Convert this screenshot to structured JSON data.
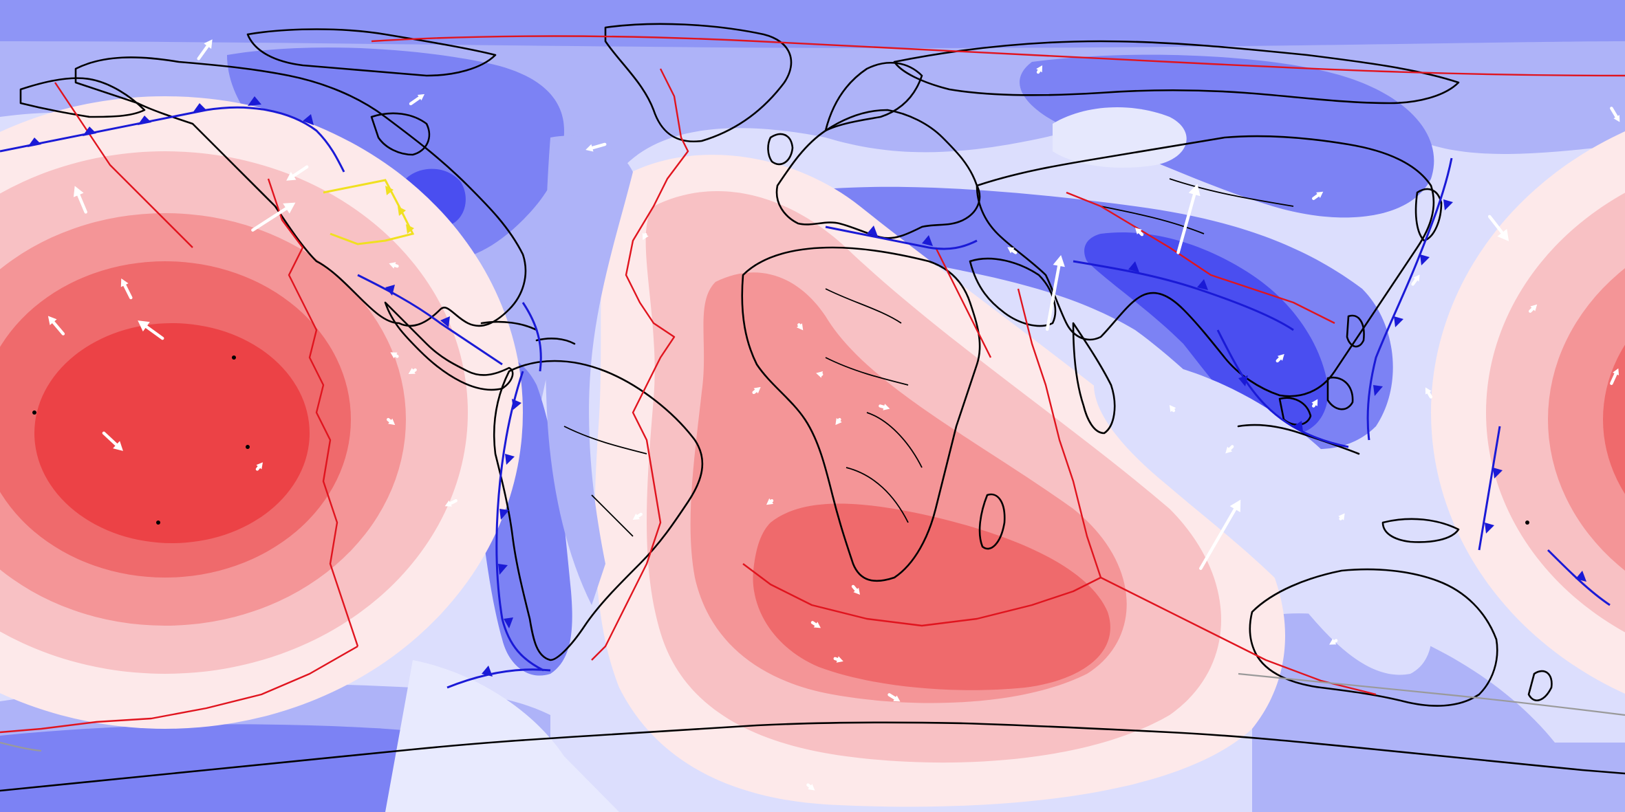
{
  "map": {
    "projection": "equirectangular",
    "extent": {
      "lon": [
        -180,
        180
      ],
      "lat": [
        -90,
        90
      ]
    },
    "field_colors": {
      "strong_negative": "#4a4ef0",
      "negative": "#7c82f4",
      "weak_negative": "#aeb3f8",
      "near_zero_negative": "#dcdefd",
      "near_zero_positive": "#fde9ea",
      "weak_positive": "#f8c1c4",
      "positive": "#f49597",
      "strong_positive": "#ef6a6c",
      "max_positive": "#ec4246"
    },
    "background_color": "#8e95f6",
    "layers": [
      "scalar-field-contours",
      "coastlines",
      "plate-boundaries",
      "subduction-zones",
      "velocity-arrows"
    ],
    "line_colors": {
      "coastline": "#000000",
      "ridge_boundary": "#e0141e",
      "subduction_trench": "#1a1ad6",
      "subduction_trench_highlight": "#f0e020",
      "other_boundary": "#9a9a9a",
      "velocity_arrow": "#ffffff"
    },
    "velocity_arrows": [
      {
        "lon": -136,
        "lat": 77
      },
      {
        "lon": -161,
        "lat": 43
      },
      {
        "lon": -151,
        "lat": 24
      },
      {
        "lon": -166,
        "lat": 16
      },
      {
        "lon": -144,
        "lat": 15
      },
      {
        "lon": -157,
        "lat": -6
      },
      {
        "lon": -124,
        "lat": 39
      },
      {
        "lon": -112,
        "lat": 53
      },
      {
        "lon": -89,
        "lat": 67
      },
      {
        "lon": -123,
        "lat": -14
      },
      {
        "lon": -79,
        "lat": -21
      },
      {
        "lon": -92,
        "lat": 31
      },
      {
        "lon": -92,
        "lat": 11
      },
      {
        "lon": -88,
        "lat": 8
      },
      {
        "lon": -94,
        "lat": -3
      },
      {
        "lon": -46,
        "lat": 58
      },
      {
        "lon": -37,
        "lat": 38
      },
      {
        "lon": -38,
        "lat": -24
      },
      {
        "lon": -3,
        "lat": 18
      },
      {
        "lon": -13,
        "lat": 3
      },
      {
        "lon": 2,
        "lat": 7
      },
      {
        "lon": -9,
        "lat": -21
      },
      {
        "lon": 0,
        "lat": -48
      },
      {
        "lon": -1,
        "lat": -84
      },
      {
        "lon": 15,
        "lat": 0
      },
      {
        "lon": 6,
        "lat": -3
      },
      {
        "lon": 50,
        "lat": 74
      },
      {
        "lon": 45,
        "lat": 34
      },
      {
        "lon": 52,
        "lat": 17
      },
      {
        "lon": 81,
        "lat": 34
      },
      {
        "lon": 73,
        "lat": 38
      },
      {
        "lon": 80,
        "lat": -1
      },
      {
        "lon": 86,
        "lat": -36
      },
      {
        "lon": 9,
        "lat": -40
      },
      {
        "lon": 5,
        "lat": -56
      },
      {
        "lon": 17,
        "lat": -64
      },
      {
        "lon": 111,
        "lat": 0
      },
      {
        "lon": 111,
        "lat": 46
      },
      {
        "lon": 133,
        "lat": 27
      },
      {
        "lon": 150,
        "lat": 42
      },
      {
        "lon": 137,
        "lat": 2
      },
      {
        "lon": 159,
        "lat": 21
      },
      {
        "lon": 117,
        "lat": -25
      },
      {
        "lon": 103,
        "lat": 10
      },
      {
        "lon": 93,
        "lat": -9
      },
      {
        "lon": 116,
        "lat": -52
      },
      {
        "lon": 177,
        "lat": 66
      },
      {
        "lon": 177,
        "lat": 5
      }
    ],
    "text_labels": []
  }
}
